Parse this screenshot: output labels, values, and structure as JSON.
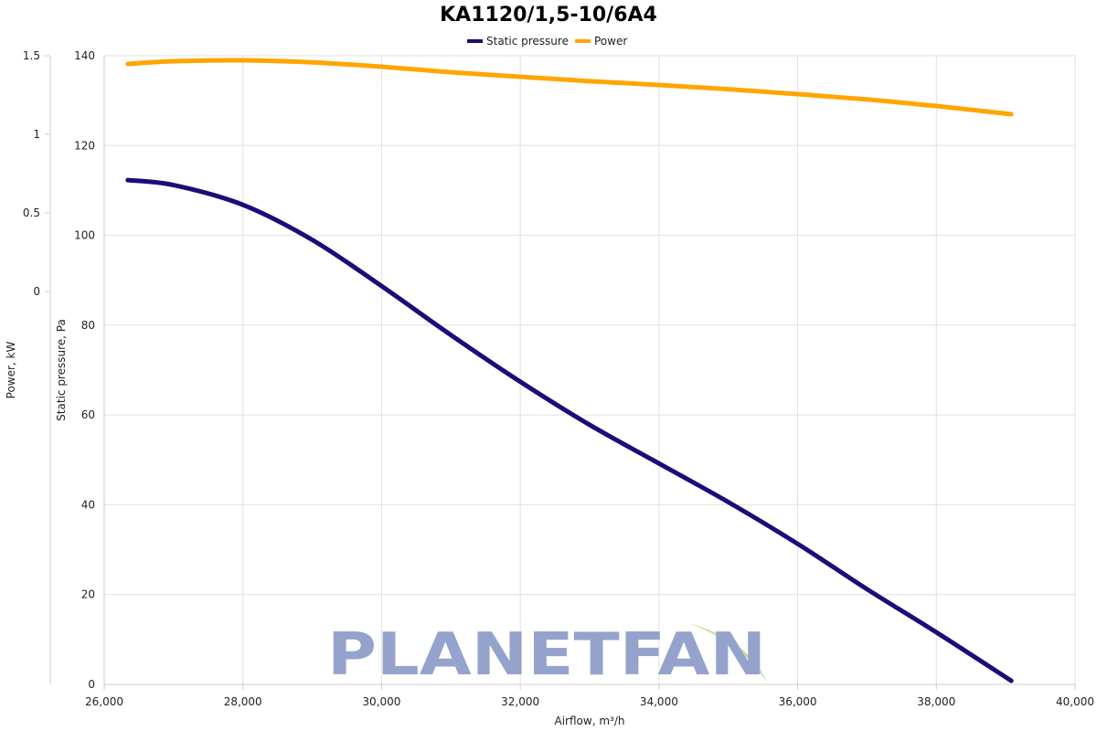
{
  "chart_data": {
    "type": "line",
    "title": "KA1120/1,5-10/6A4",
    "xlabel": "Airflow, m³/h",
    "ylabel": "Static pressure, Pa",
    "y2label": "Power, kW",
    "xlim": [
      26000,
      40000
    ],
    "ylim": [
      0,
      140
    ],
    "y2lim": [
      0,
      1.5
    ],
    "xticks": [
      "26,000",
      "28,000",
      "30,000",
      "32,000",
      "34,000",
      "36,000",
      "38,000",
      "40,000"
    ],
    "yticks": [
      "0",
      "20",
      "40",
      "60",
      "80",
      "100",
      "120",
      "140"
    ],
    "y2ticks": [
      "0",
      "0.5",
      "1",
      "1.5"
    ],
    "grid": true,
    "legend_position": "top",
    "series": [
      {
        "name": "Static pressure",
        "axis": "y",
        "color": "#1f0a7a",
        "x": [
          26340,
          27000,
          28000,
          29000,
          30000,
          31000,
          32000,
          33000,
          34000,
          35000,
          36000,
          37000,
          38000,
          39080
        ],
        "y": [
          112.3,
          111.2,
          106.8,
          99.0,
          88.7,
          77.8,
          67.4,
          57.8,
          49.2,
          40.6,
          31.3,
          21.2,
          11.6,
          0.8
        ]
      },
      {
        "name": "Power",
        "axis": "y2",
        "color": "#ffa500",
        "x": [
          26340,
          27000,
          28000,
          29000,
          30000,
          31000,
          32000,
          33000,
          34000,
          35000,
          36000,
          37000,
          38000,
          39080
        ],
        "y": [
          1.448,
          1.465,
          1.471,
          1.458,
          1.43,
          1.395,
          1.366,
          1.338,
          1.314,
          1.287,
          1.256,
          1.222,
          1.18,
          1.128
        ]
      }
    ]
  },
  "watermark": {
    "logo_text": "PLANETFAN",
    "color": "#95a3cc",
    "leaf_color": "#c5e09a"
  }
}
